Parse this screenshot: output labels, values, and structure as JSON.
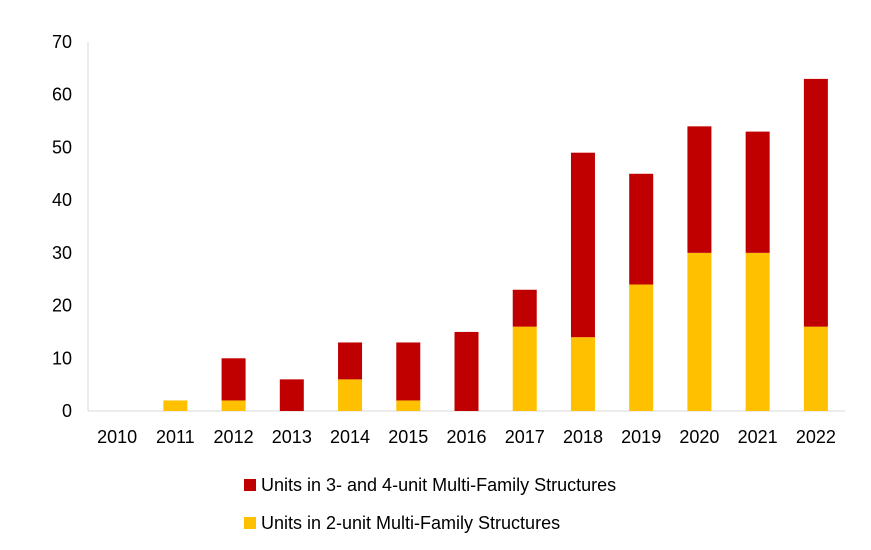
{
  "chart_data": {
    "type": "bar",
    "stacked": true,
    "categories": [
      "2010",
      "2011",
      "2012",
      "2013",
      "2014",
      "2015",
      "2016",
      "2017",
      "2018",
      "2019",
      "2020",
      "2021",
      "2022"
    ],
    "series": [
      {
        "name": "Units in 2-unit Multi-Family Structures",
        "color": "#FFC000",
        "values": [
          0,
          2,
          2,
          0,
          6,
          2,
          0,
          16,
          14,
          24,
          30,
          30,
          16
        ]
      },
      {
        "name": "Units in 3- and 4-unit Multi-Family Structures",
        "color": "#C00000",
        "values": [
          0,
          0,
          8,
          6,
          7,
          11,
          15,
          7,
          35,
          21,
          24,
          23,
          47
        ]
      }
    ],
    "ylim": [
      0,
      70
    ],
    "yticks": [
      "0",
      "10",
      "20",
      "30",
      "40",
      "50",
      "60",
      "70"
    ],
    "grid": false,
    "legend_position": "bottom",
    "legend_order": [
      "Units in 3- and 4-unit Multi-Family Structures",
      "Units in 2-unit Multi-Family Structures"
    ]
  }
}
